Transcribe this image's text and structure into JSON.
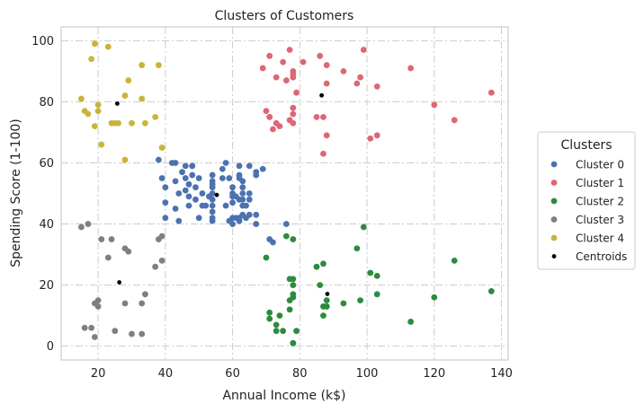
{
  "chart_data": {
    "type": "scatter",
    "title": "Clusters of Customers",
    "xlabel": "Annual Income (k$)",
    "ylabel": "Spending Score (1-100)",
    "xlim": [
      9,
      142
    ],
    "ylim": [
      -4.5,
      104.5
    ],
    "xticks": [
      20,
      40,
      60,
      80,
      100,
      120,
      140
    ],
    "yticks": [
      0,
      20,
      40,
      60,
      80,
      100
    ],
    "grid": true,
    "legend": {
      "title": "Clusters",
      "position": "right-outside"
    },
    "series": [
      {
        "name": "Cluster 0",
        "color": "#4c72b0",
        "points": [
          [
            38,
            61
          ],
          [
            39,
            55
          ],
          [
            40,
            47
          ],
          [
            40,
            42
          ],
          [
            40,
            52
          ],
          [
            42,
            60
          ],
          [
            43,
            60
          ],
          [
            43,
            54
          ],
          [
            43,
            45
          ],
          [
            44,
            50
          ],
          [
            44,
            41
          ],
          [
            45,
            57
          ],
          [
            46,
            59
          ],
          [
            46,
            55
          ],
          [
            46,
            51
          ],
          [
            47,
            46
          ],
          [
            47,
            49
          ],
          [
            47,
            53
          ],
          [
            48,
            59
          ],
          [
            48,
            59
          ],
          [
            48,
            56
          ],
          [
            49,
            48
          ],
          [
            49,
            52
          ],
          [
            50,
            55
          ],
          [
            50,
            42
          ],
          [
            51,
            46
          ],
          [
            51,
            50
          ],
          [
            52,
            46
          ],
          [
            53,
            49
          ],
          [
            54,
            50
          ],
          [
            54,
            56
          ],
          [
            54,
            52
          ],
          [
            54,
            46
          ],
          [
            54,
            42
          ],
          [
            54,
            53
          ],
          [
            54,
            48
          ],
          [
            54,
            44
          ],
          [
            54,
            54
          ],
          [
            54,
            41
          ],
          [
            57,
            58
          ],
          [
            57,
            55
          ],
          [
            58,
            60
          ],
          [
            58,
            46
          ],
          [
            59,
            55
          ],
          [
            59,
            41
          ],
          [
            60,
            49
          ],
          [
            60,
            40
          ],
          [
            60,
            42
          ],
          [
            60,
            52
          ],
          [
            60,
            47
          ],
          [
            60,
            50
          ],
          [
            61,
            42
          ],
          [
            61,
            49
          ],
          [
            62,
            41
          ],
          [
            62,
            48
          ],
          [
            62,
            59
          ],
          [
            62,
            55
          ],
          [
            62,
            56
          ],
          [
            62,
            42
          ],
          [
            63,
            50
          ],
          [
            63,
            46
          ],
          [
            63,
            43
          ],
          [
            63,
            48
          ],
          [
            63,
            52
          ],
          [
            63,
            54
          ],
          [
            64,
            42
          ],
          [
            64,
            46
          ],
          [
            65,
            48
          ],
          [
            65,
            50
          ],
          [
            65,
            43
          ],
          [
            65,
            59
          ],
          [
            67,
            43
          ],
          [
            67,
            57
          ],
          [
            67,
            56
          ],
          [
            67,
            40
          ],
          [
            69,
            58
          ],
          [
            71,
            35
          ],
          [
            72,
            34
          ],
          [
            76,
            40
          ]
        ]
      },
      {
        "name": "Cluster 1",
        "color": "#dd6677",
        "points": [
          [
            69,
            91
          ],
          [
            70,
            77
          ],
          [
            71,
            95
          ],
          [
            71,
            75
          ],
          [
            71,
            75
          ],
          [
            72,
            71
          ],
          [
            73,
            88
          ],
          [
            73,
            73
          ],
          [
            74,
            72
          ],
          [
            75,
            93
          ],
          [
            76,
            87
          ],
          [
            77,
            97
          ],
          [
            77,
            74
          ],
          [
            78,
            90
          ],
          [
            78,
            88
          ],
          [
            78,
            76
          ],
          [
            78,
            89
          ],
          [
            78,
            78
          ],
          [
            78,
            73
          ],
          [
            79,
            83
          ],
          [
            81,
            93
          ],
          [
            85,
            75
          ],
          [
            86,
            95
          ],
          [
            87,
            63
          ],
          [
            87,
            75
          ],
          [
            88,
            92
          ],
          [
            88,
            86
          ],
          [
            88,
            69
          ],
          [
            93,
            90
          ],
          [
            97,
            86
          ],
          [
            98,
            88
          ],
          [
            99,
            97
          ],
          [
            101,
            68
          ],
          [
            103,
            85
          ],
          [
            103,
            69
          ],
          [
            113,
            91
          ],
          [
            120,
            79
          ],
          [
            126,
            74
          ],
          [
            137,
            83
          ]
        ]
      },
      {
        "name": "Cluster 2",
        "color": "#2e8b3d",
        "points": [
          [
            70,
            29
          ],
          [
            71,
            11
          ],
          [
            71,
            9
          ],
          [
            73,
            5
          ],
          [
            73,
            7
          ],
          [
            74,
            10
          ],
          [
            75,
            5
          ],
          [
            76,
            36
          ],
          [
            77,
            22
          ],
          [
            77,
            12
          ],
          [
            77,
            15
          ],
          [
            78,
            1
          ],
          [
            78,
            17
          ],
          [
            78,
            22
          ],
          [
            78,
            20
          ],
          [
            78,
            16
          ],
          [
            78,
            1
          ],
          [
            78,
            35
          ],
          [
            79,
            5
          ],
          [
            85,
            26
          ],
          [
            86,
            20
          ],
          [
            87,
            27
          ],
          [
            87,
            13
          ],
          [
            87,
            10
          ],
          [
            88,
            13
          ],
          [
            88,
            15
          ],
          [
            88,
            13
          ],
          [
            93,
            14
          ],
          [
            97,
            32
          ],
          [
            98,
            15
          ],
          [
            99,
            39
          ],
          [
            101,
            24
          ],
          [
            103,
            17
          ],
          [
            103,
            23
          ],
          [
            113,
            8
          ],
          [
            120,
            16
          ],
          [
            126,
            28
          ],
          [
            137,
            18
          ]
        ]
      },
      {
        "name": "Cluster 3",
        "color": "#7f7f7f",
        "points": [
          [
            15,
            39
          ],
          [
            16,
            6
          ],
          [
            17,
            40
          ],
          [
            18,
            6
          ],
          [
            19,
            3
          ],
          [
            19,
            14
          ],
          [
            20,
            15
          ],
          [
            20,
            13
          ],
          [
            21,
            35
          ],
          [
            23,
            29
          ],
          [
            24,
            35
          ],
          [
            25,
            5
          ],
          [
            28,
            14
          ],
          [
            28,
            32
          ],
          [
            29,
            31
          ],
          [
            30,
            4
          ],
          [
            33,
            4
          ],
          [
            33,
            14
          ],
          [
            34,
            17
          ],
          [
            37,
            26
          ],
          [
            38,
            35
          ],
          [
            39,
            36
          ],
          [
            39,
            28
          ]
        ]
      },
      {
        "name": "Cluster 4",
        "color": "#c9b43a",
        "points": [
          [
            15,
            81
          ],
          [
            16,
            77
          ],
          [
            17,
            76
          ],
          [
            18,
            94
          ],
          [
            19,
            72
          ],
          [
            19,
            99
          ],
          [
            20,
            77
          ],
          [
            20,
            79
          ],
          [
            21,
            66
          ],
          [
            23,
            98
          ],
          [
            24,
            73
          ],
          [
            25,
            73
          ],
          [
            28,
            82
          ],
          [
            28,
            61
          ],
          [
            29,
            87
          ],
          [
            30,
            73
          ],
          [
            33,
            92
          ],
          [
            33,
            81
          ],
          [
            34,
            73
          ],
          [
            37,
            75
          ],
          [
            38,
            92
          ],
          [
            39,
            65
          ],
          [
            26,
            73
          ]
        ]
      }
    ],
    "centroids": {
      "name": "Centroids",
      "color": "#000000",
      "points": [
        [
          55.3,
          49.5
        ],
        [
          86.5,
          82.1
        ],
        [
          88.2,
          17.1
        ],
        [
          26.3,
          20.9
        ],
        [
          25.7,
          79.4
        ]
      ]
    }
  }
}
